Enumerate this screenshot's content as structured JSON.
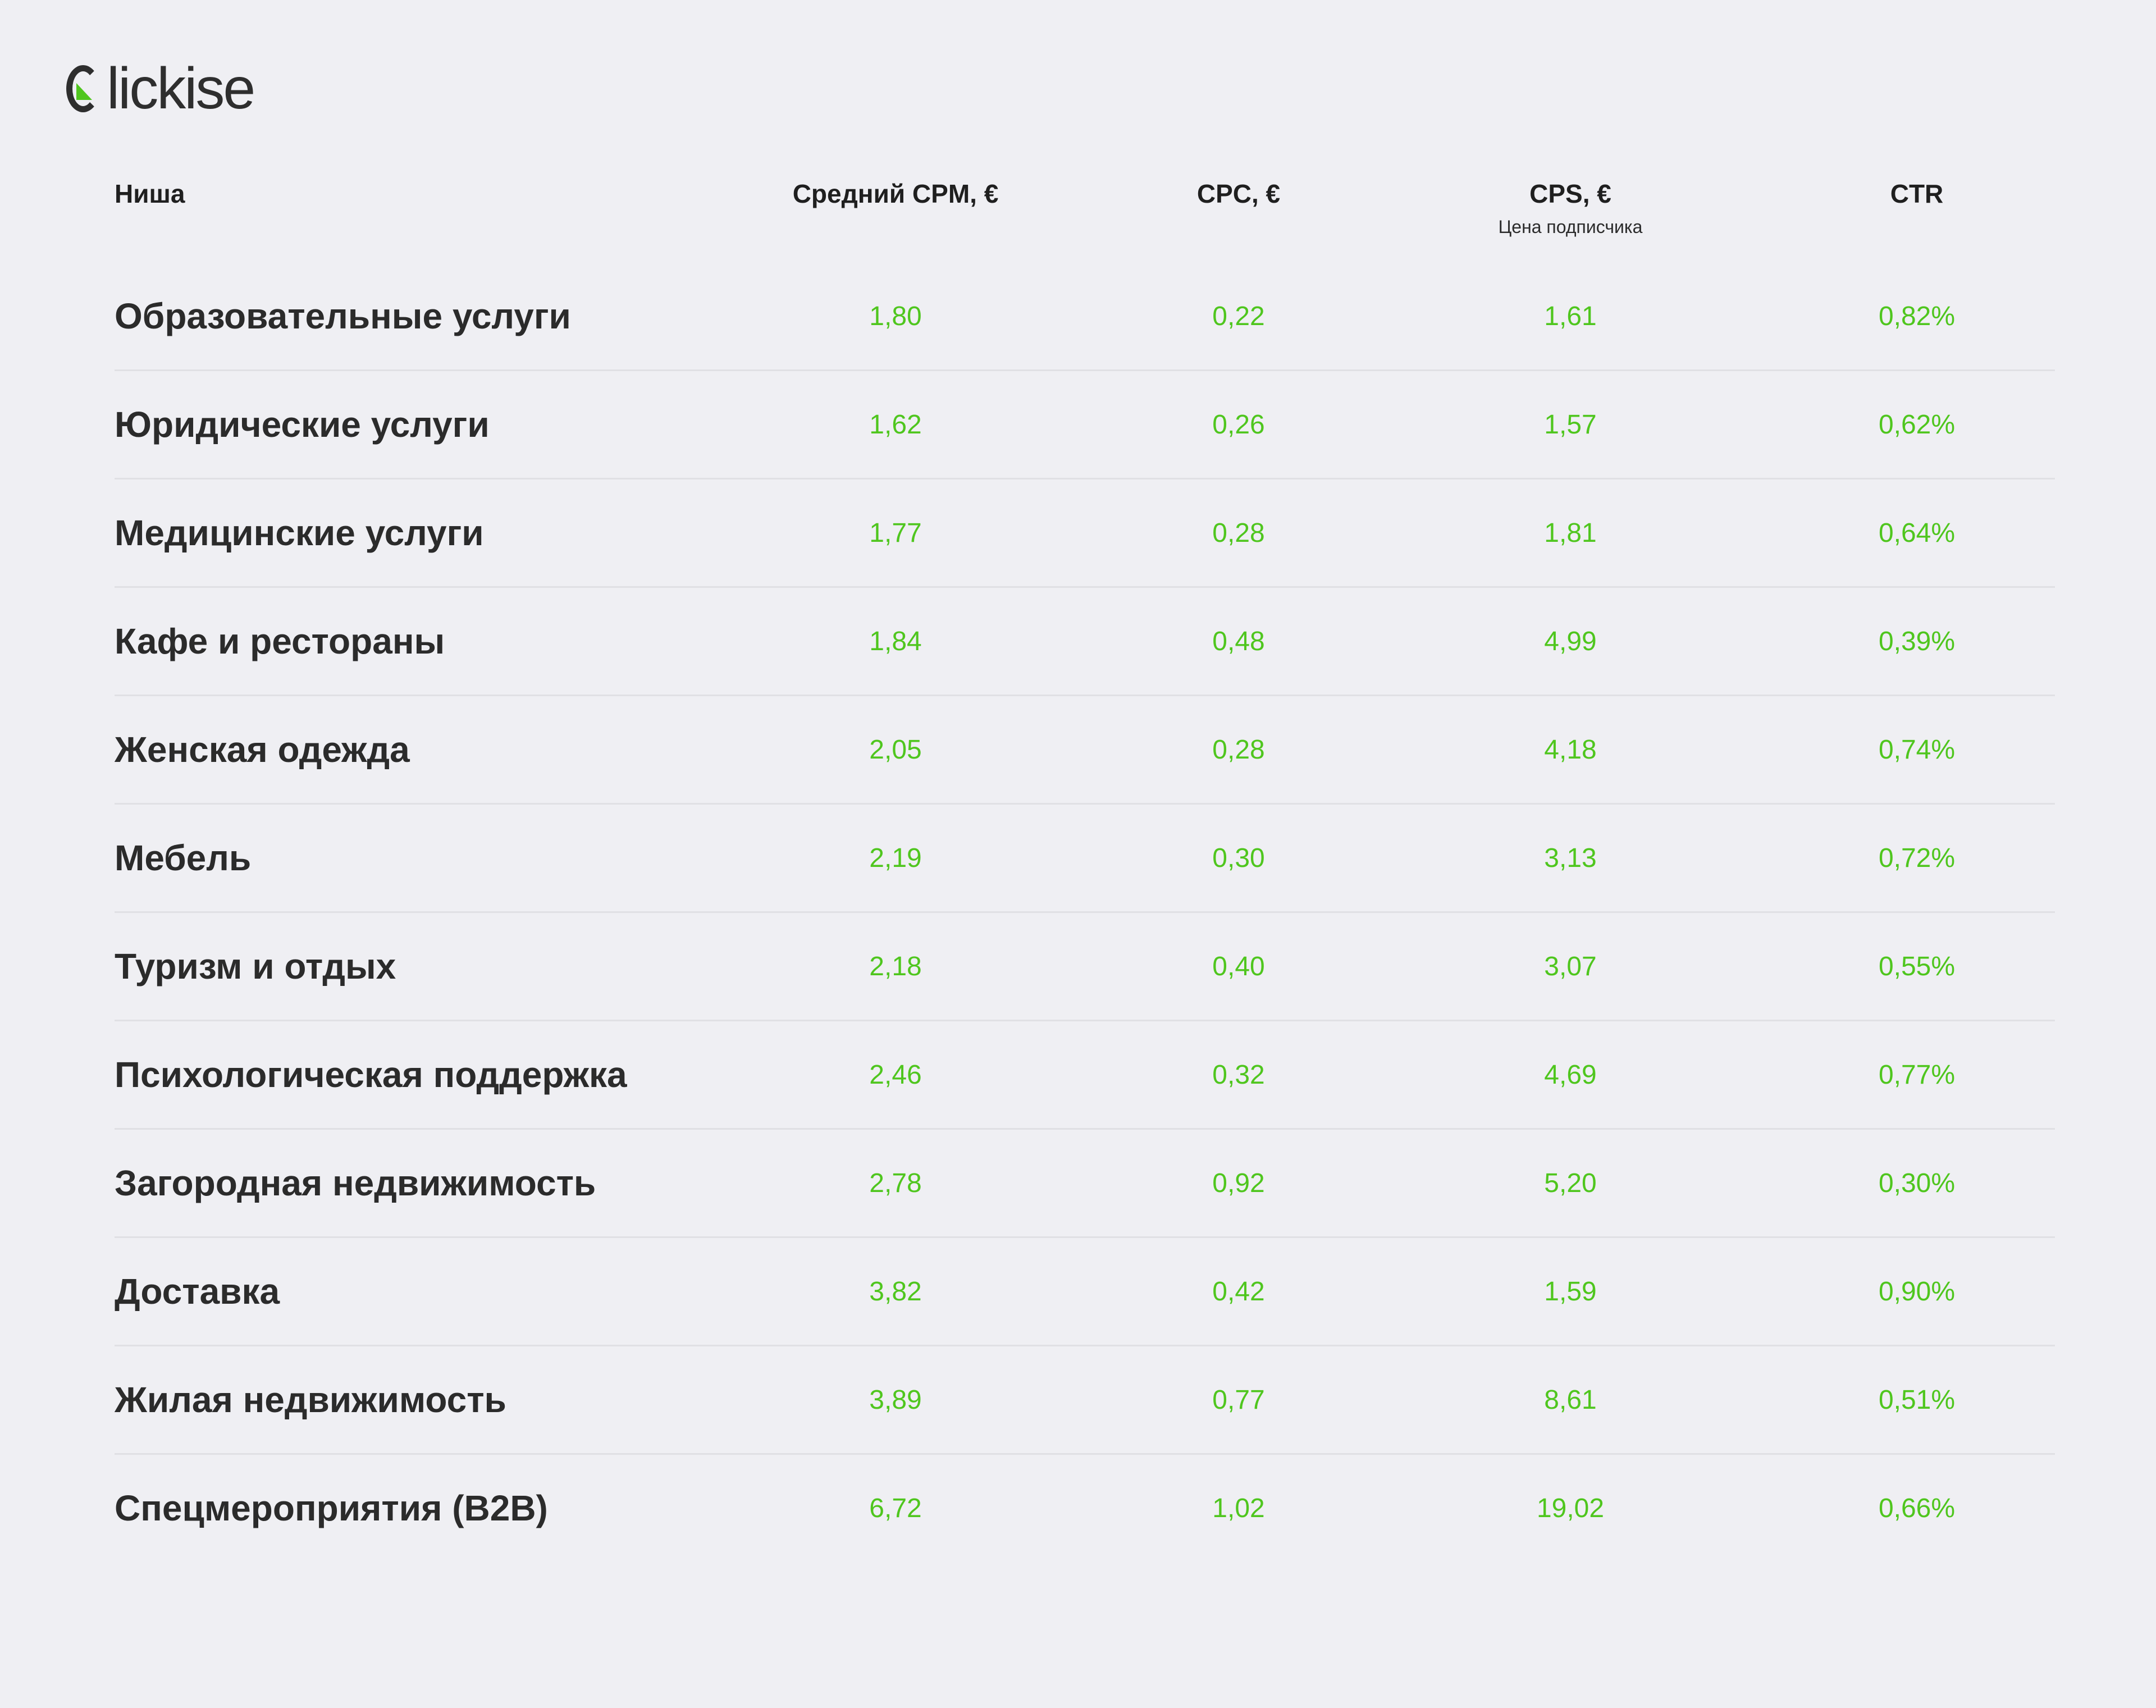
{
  "brand": {
    "logo_text": "lickise",
    "accent": "#4fc61e"
  },
  "chart_data": {
    "type": "table",
    "columns": [
      {
        "label": "Ниша",
        "sublabel": ""
      },
      {
        "label": "Средний CPM, €",
        "sublabel": ""
      },
      {
        "label": "CPC, €",
        "sublabel": ""
      },
      {
        "label": "CPS, €",
        "sublabel": "Цена подписчика"
      },
      {
        "label": "CTR",
        "sublabel": ""
      }
    ],
    "rows": [
      {
        "niche": "Образовательные услуги",
        "cpm": "1,80",
        "cpc": "0,22",
        "cps": "1,61",
        "ctr": "0,82%"
      },
      {
        "niche": "Юридические услуги",
        "cpm": "1,62",
        "cpc": "0,26",
        "cps": "1,57",
        "ctr": "0,62%"
      },
      {
        "niche": "Медицинские услуги",
        "cpm": "1,77",
        "cpc": "0,28",
        "cps": "1,81",
        "ctr": "0,64%"
      },
      {
        "niche": "Кафе и рестораны",
        "cpm": "1,84",
        "cpc": "0,48",
        "cps": "4,99",
        "ctr": "0,39%"
      },
      {
        "niche": "Женская одежда",
        "cpm": "2,05",
        "cpc": "0,28",
        "cps": "4,18",
        "ctr": "0,74%"
      },
      {
        "niche": "Мебель",
        "cpm": "2,19",
        "cpc": "0,30",
        "cps": "3,13",
        "ctr": "0,72%"
      },
      {
        "niche": "Туризм и отдых",
        "cpm": "2,18",
        "cpc": "0,40",
        "cps": "3,07",
        "ctr": "0,55%"
      },
      {
        "niche": "Психологическая поддержка",
        "cpm": "2,46",
        "cpc": "0,32",
        "cps": "4,69",
        "ctr": "0,77%"
      },
      {
        "niche": "Загородная недвижимость",
        "cpm": "2,78",
        "cpc": "0,92",
        "cps": "5,20",
        "ctr": "0,30%"
      },
      {
        "niche": "Доставка",
        "cpm": "3,82",
        "cpc": "0,42",
        "cps": "1,59",
        "ctr": "0,90%"
      },
      {
        "niche": "Жилая недвижимость",
        "cpm": "3,89",
        "cpc": "0,77",
        "cps": "8,61",
        "ctr": "0,51%"
      },
      {
        "niche": "Спецмероприятия (B2B)",
        "cpm": "6,72",
        "cpc": "1,02",
        "cps": "19,02",
        "ctr": "0,66%"
      }
    ]
  }
}
